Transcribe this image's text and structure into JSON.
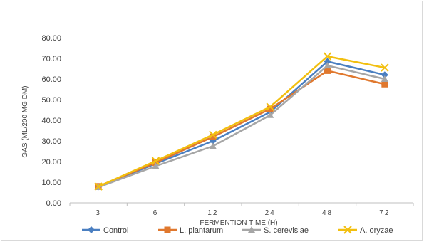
{
  "chart_data": {
    "type": "line",
    "title": "",
    "xlabel": "FERMENTION TIME (H)",
    "ylabel": "GAS (ML/200 MG DM)",
    "categories": [
      "3",
      "6",
      "12",
      "24",
      "48",
      "72"
    ],
    "ylim": [
      0,
      80
    ],
    "yticks": [
      "0.00",
      "10.00",
      "20.00",
      "30.00",
      "40.00",
      "50.00",
      "60.00",
      "70.00",
      "80.00"
    ],
    "grid": false,
    "legend_position": "bottom",
    "series": [
      {
        "name": "Control",
        "color": "#4a7fc1",
        "marker": "diamond",
        "values": [
          7.8,
          19.0,
          30.0,
          44.0,
          68.5,
          62.0
        ]
      },
      {
        "name": "L. plantarum",
        "color": "#e0782e",
        "marker": "square",
        "values": [
          8.0,
          19.5,
          32.0,
          45.5,
          64.0,
          57.5
        ]
      },
      {
        "name": "S. cerevisiae",
        "color": "#a6a6a6",
        "marker": "triangle",
        "values": [
          7.6,
          17.8,
          27.5,
          42.5,
          66.5,
          60.0
        ]
      },
      {
        "name": "A. oryzae",
        "color": "#f2bf0f",
        "marker": "x",
        "values": [
          7.9,
          20.3,
          33.0,
          46.5,
          71.0,
          65.5
        ]
      }
    ]
  }
}
